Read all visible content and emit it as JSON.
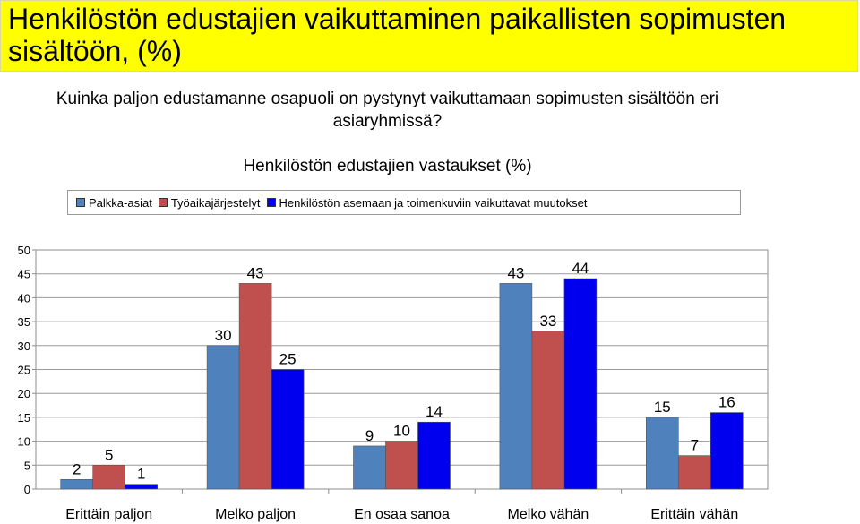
{
  "banner": {
    "title": "Henkilöstön edustajien vaikuttaminen paikallisten sopimusten sisältöön, (%)"
  },
  "question": "Kuinka paljon edustamanne osapuoli on pystynyt vaikuttamaan sopimusten sisältöön eri asiaryhmissä?",
  "chart_data": {
    "type": "bar",
    "title": "Henkilöstön edustajien vastaukset (%)",
    "xlabel": "",
    "ylabel": "",
    "categories": [
      "Erittäin paljon",
      "Melko paljon",
      "En osaa sanoa",
      "Melko vähän",
      "Erittäin vähän"
    ],
    "series": [
      {
        "name": "Palkka-asiat",
        "color": "#4f81bd",
        "values": [
          2,
          30,
          9,
          43,
          15
        ]
      },
      {
        "name": "Työaikajärjestelyt",
        "color": "#c0504d",
        "values": [
          5,
          43,
          10,
          33,
          7
        ]
      },
      {
        "name": "Henkilöstön asemaan ja toimenkuviin vaikuttavat muutokset",
        "color": "#0000ee",
        "values": [
          1,
          25,
          14,
          44,
          16
        ]
      }
    ],
    "ylim": [
      0,
      50
    ],
    "yticks": [
      0,
      5,
      10,
      15,
      20,
      25,
      30,
      35,
      40,
      45,
      50
    ],
    "grid": true,
    "legend_position": "top"
  }
}
